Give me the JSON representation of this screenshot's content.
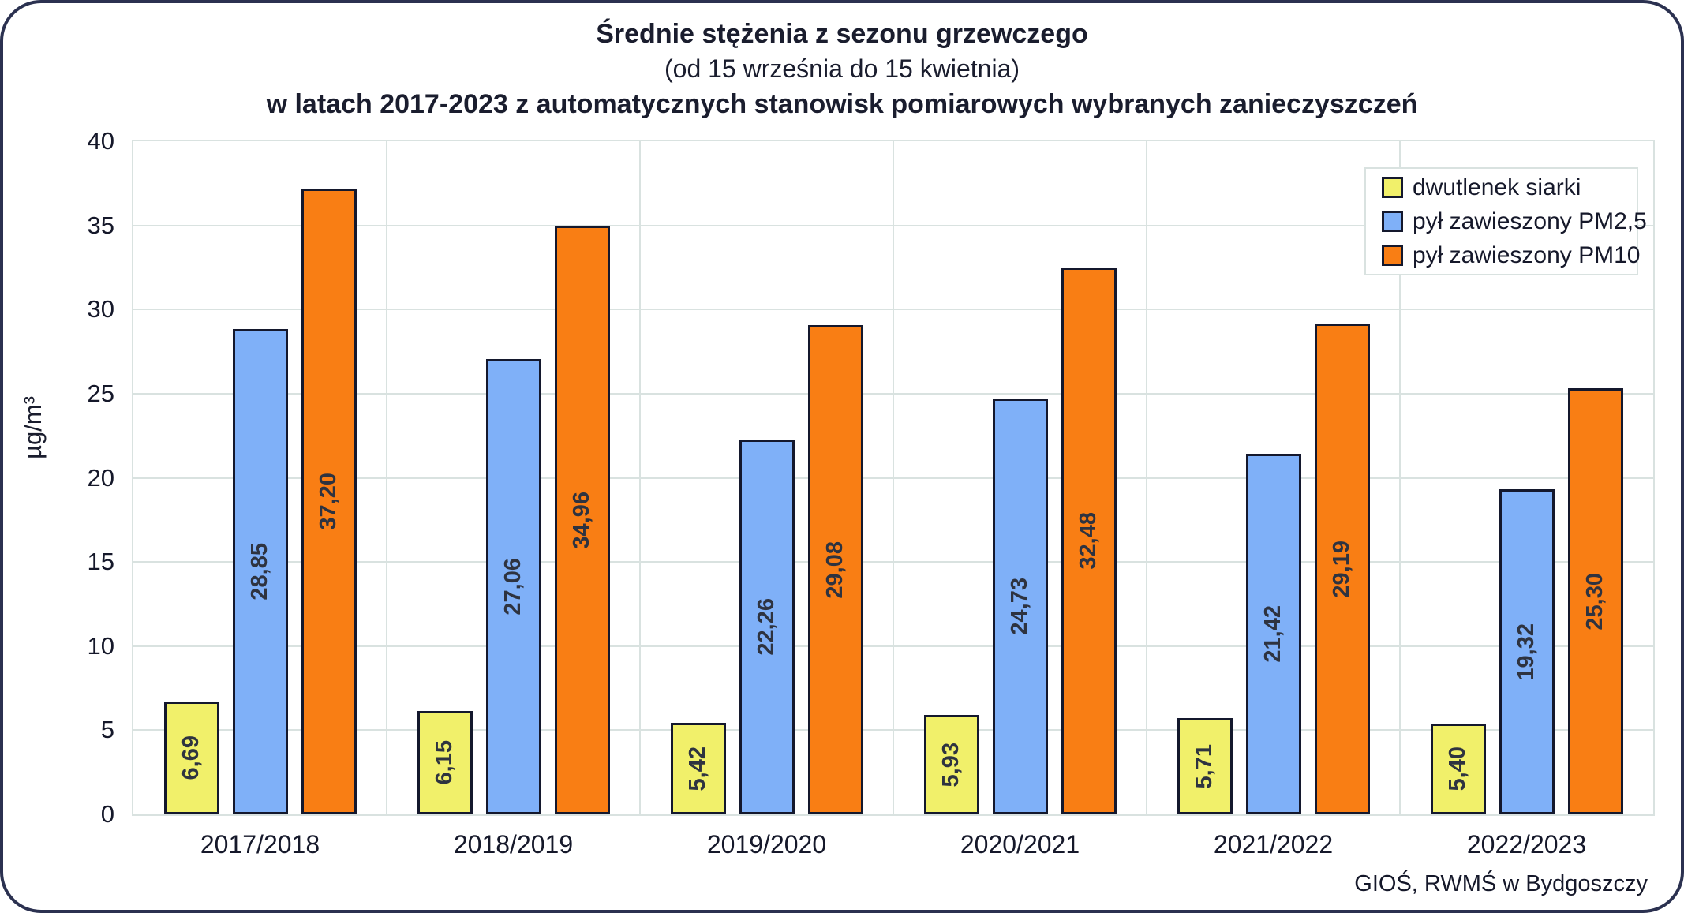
{
  "title": {
    "line1": "Średnie stężenia z sezonu grzewczego",
    "line2": "(od 15 września do 15 kwietnia)",
    "line3": "w latach 2017-2023 z automatycznych stanowisk pomiarowych wybranych zanieczyszczeń"
  },
  "source": "GIOŚ, RWMŚ w Bydgoszczy",
  "colors": {
    "bar_outline": "#14182D",
    "gridline": "#D9E2E0",
    "frame_border": "#2B3150",
    "axis_text": "#15182A",
    "bar_label_text": "#2E3340"
  },
  "chart_data": {
    "type": "bar",
    "title": "Średnie stężenia z sezonu grzewczego (od 15 września do 15 kwietnia) w latach 2017-2023 z automatycznych stanowisk pomiarowych wybranych zanieczyszczeń",
    "xlabel": "",
    "ylabel": "µg/m³",
    "ylim": [
      0,
      40
    ],
    "yticks": [
      0,
      5,
      10,
      15,
      20,
      25,
      30,
      35,
      40
    ],
    "grid": true,
    "legend_position": "top-right",
    "categories": [
      "2017/2018",
      "2018/2019",
      "2019/2020",
      "2020/2021",
      "2021/2022",
      "2022/2023"
    ],
    "series": [
      {
        "name": "dwutlenek siarki",
        "slug": "so2",
        "color": "#F1F06A",
        "values": [
          6.69,
          6.15,
          5.42,
          5.93,
          5.71,
          5.4
        ],
        "labels": [
          "6,69",
          "6,15",
          "5,42",
          "5,93",
          "5,71",
          "5,40"
        ]
      },
      {
        "name": "pył zawieszony PM2,5",
        "slug": "pm25",
        "color": "#7FB0F8",
        "values": [
          28.85,
          27.06,
          22.26,
          24.73,
          21.42,
          19.32
        ],
        "labels": [
          "28,85",
          "27,06",
          "22,26",
          "24,73",
          "21,42",
          "19,32"
        ]
      },
      {
        "name": "pył zawieszony PM10",
        "slug": "pm10",
        "color": "#F97E14",
        "values": [
          37.2,
          34.96,
          29.08,
          32.48,
          29.19,
          25.3
        ],
        "labels": [
          "37,20",
          "34,96",
          "29,08",
          "32,48",
          "29,19",
          "25,30"
        ]
      }
    ],
    "source": "GIOŚ, RWMŚ w Bydgoszczy"
  }
}
